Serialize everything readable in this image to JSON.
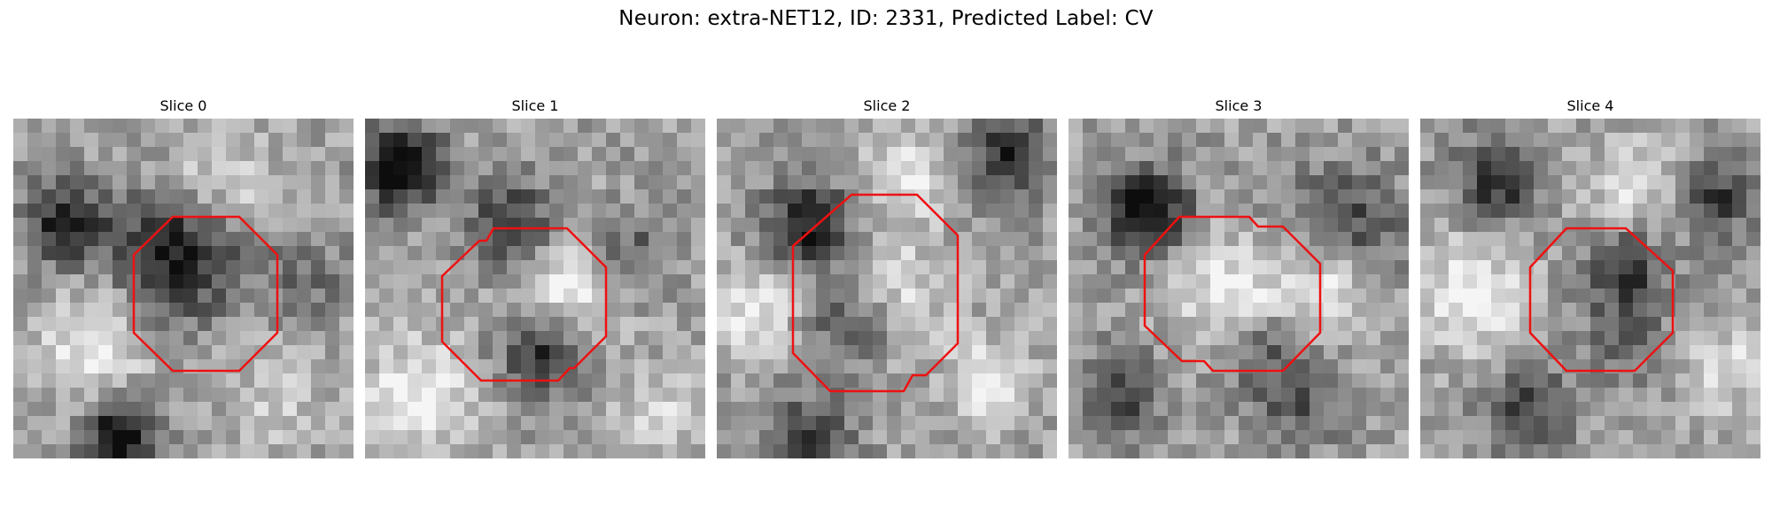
{
  "figure": {
    "title": "Neuron: extra-NET12, ID: 2331, Predicted Label: CV",
    "contour_color": "#ee1111"
  },
  "slices": [
    {
      "label": "Slice 0"
    },
    {
      "label": "Slice 1"
    },
    {
      "label": "Slice 2"
    },
    {
      "label": "Slice 3"
    },
    {
      "label": "Slice 4"
    }
  ]
}
